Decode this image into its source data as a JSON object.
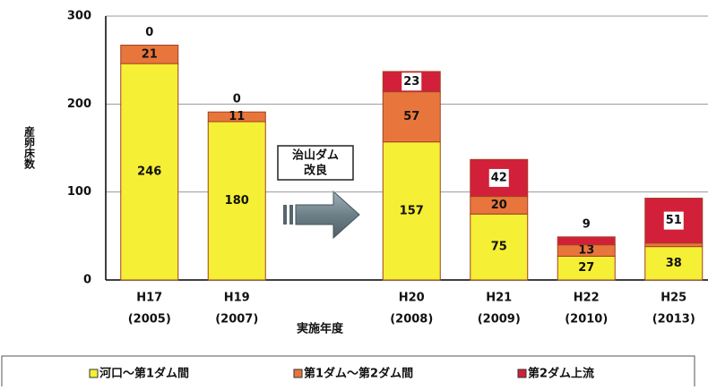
{
  "chart_data": {
    "type": "stacked_bar",
    "y_label": "産卵床数",
    "x_label": "実施年度",
    "categories": [
      [
        "H17",
        "(2005)"
      ],
      [
        "H19",
        "(2007)"
      ],
      null,
      [
        "H20",
        "(2008)"
      ],
      [
        "H21",
        "(2009)"
      ],
      [
        "H22",
        "(2010)"
      ],
      [
        "H25",
        "(2013)"
      ]
    ],
    "series": [
      {
        "name": "河口～第1ダム間",
        "color": "#f5ef35",
        "values": [
          246,
          180,
          null,
          157,
          75,
          27,
          38
        ]
      },
      {
        "name": "第1ダム～第2ダム間",
        "color": "#e8763c",
        "values": [
          21,
          11,
          null,
          57,
          20,
          13,
          4
        ],
        "value_labels": [
          "21",
          "11",
          null,
          "57",
          "20",
          "13",
          null
        ]
      },
      {
        "name": "第2ダム上流",
        "color": "#d2203a",
        "values": [
          0,
          0,
          null,
          23,
          42,
          9,
          51
        ]
      }
    ],
    "annotation": [
      "治山ダム",
      "改良"
    ],
    "ylim": [
      0,
      300
    ],
    "yticks": [
      0,
      100,
      200,
      300
    ],
    "grid": true,
    "legend": "bottom"
  }
}
